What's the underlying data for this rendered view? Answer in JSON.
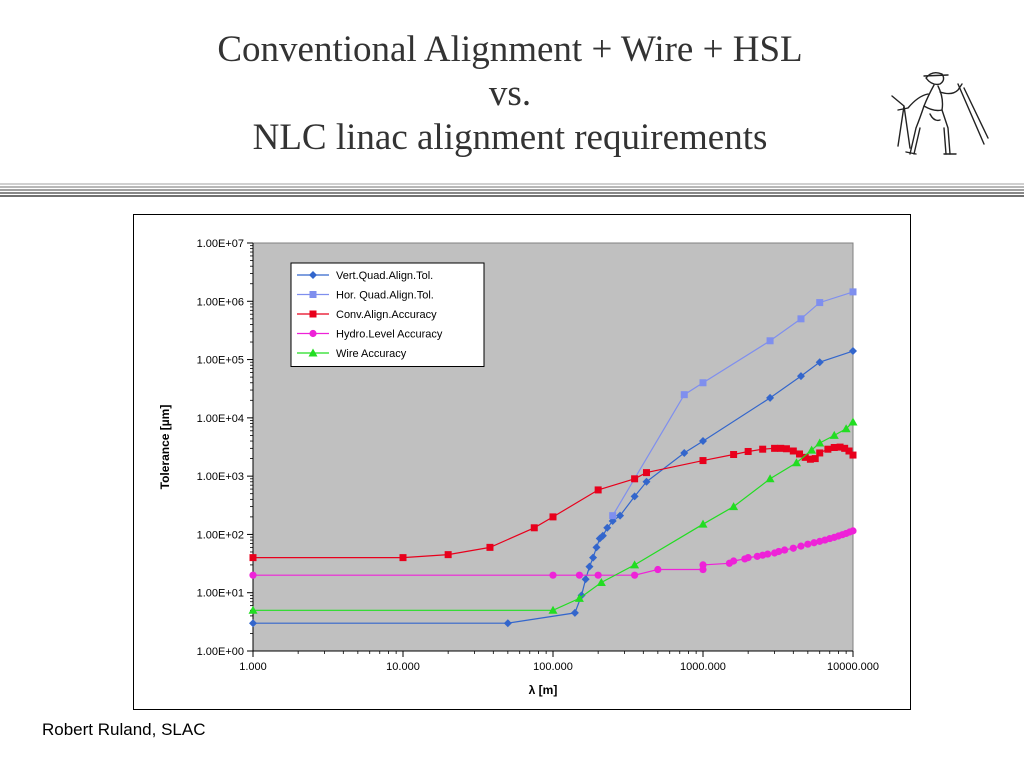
{
  "slide": {
    "title_lines": [
      "Conventional Alignment + Wire + HSL",
      "vs.",
      "NLC linac alignment requirements"
    ],
    "footer": "Robert Ruland, SLAC"
  },
  "chart_data": {
    "type": "scatter",
    "title": "",
    "xlabel": "λ  [m]",
    "ylabel": "Tolerance [µm]",
    "x_scale": "log",
    "y_scale": "log",
    "xlim": [
      1,
      10000
    ],
    "ylim": [
      1,
      10000000
    ],
    "x_ticks": [
      {
        "v": 1,
        "label": "1.000"
      },
      {
        "v": 10,
        "label": "10.000"
      },
      {
        "v": 100,
        "label": "100.000"
      },
      {
        "v": 1000,
        "label": "1000.000"
      },
      {
        "v": 10000,
        "label": "10000.000"
      }
    ],
    "y_ticks": [
      {
        "v": 1,
        "label": "1.00E+00"
      },
      {
        "v": 10,
        "label": "1.00E+01"
      },
      {
        "v": 100,
        "label": "1.00E+02"
      },
      {
        "v": 1000,
        "label": "1.00E+03"
      },
      {
        "v": 10000,
        "label": "1.00E+04"
      },
      {
        "v": 100000,
        "label": "1.00E+05"
      },
      {
        "v": 1000000,
        "label": "1.00E+06"
      },
      {
        "v": 10000000,
        "label": "1.00E+07"
      }
    ],
    "grid": false,
    "legend_position": "top-left",
    "plot_background": "#c0c0c0",
    "series": [
      {
        "name": "Vert.Quad.Align.Tol.",
        "color": "#3366cc",
        "marker": "diamond",
        "points": [
          [
            1,
            3
          ],
          [
            50,
            3
          ],
          [
            140,
            4.5
          ],
          [
            155,
            9
          ],
          [
            165,
            17
          ],
          [
            175,
            28
          ],
          [
            185,
            40
          ],
          [
            195,
            60
          ],
          [
            205,
            85
          ],
          [
            215,
            95
          ],
          [
            230,
            130
          ],
          [
            250,
            170
          ],
          [
            280,
            210
          ],
          [
            350,
            450
          ],
          [
            420,
            800
          ],
          [
            750,
            2500
          ],
          [
            1000,
            4000
          ],
          [
            2800,
            22000
          ],
          [
            4500,
            52000
          ],
          [
            6000,
            90000
          ],
          [
            10000,
            140000
          ]
        ]
      },
      {
        "name": "Hor. Quad.Align.Tol.",
        "color": "#7f8fee",
        "marker": "square",
        "points": [
          [
            250,
            210
          ],
          [
            750,
            25000
          ],
          [
            1000,
            40000
          ],
          [
            2800,
            210000
          ],
          [
            4500,
            500000
          ],
          [
            6000,
            950000
          ],
          [
            10000,
            1450000
          ]
        ]
      },
      {
        "name": "Conv.Align.Accuracy",
        "color": "#e8001c",
        "marker": "square",
        "points": [
          [
            1,
            40
          ],
          [
            10,
            40
          ],
          [
            20,
            45
          ],
          [
            38,
            60
          ],
          [
            75,
            130
          ],
          [
            100,
            200
          ],
          [
            200,
            580
          ],
          [
            350,
            900
          ],
          [
            420,
            1150
          ],
          [
            1000,
            1850
          ],
          [
            1600,
            2350
          ],
          [
            2000,
            2650
          ],
          [
            2500,
            2900
          ],
          [
            3000,
            3000
          ],
          [
            3300,
            3000
          ],
          [
            3600,
            2950
          ],
          [
            4000,
            2700
          ],
          [
            4400,
            2400
          ],
          [
            4800,
            2100
          ],
          [
            5200,
            1950
          ],
          [
            5600,
            2000
          ],
          [
            6000,
            2500
          ],
          [
            6800,
            2900
          ],
          [
            7500,
            3100
          ],
          [
            8200,
            3150
          ],
          [
            8800,
            3000
          ],
          [
            9400,
            2700
          ],
          [
            10000,
            2300
          ]
        ]
      },
      {
        "name": "Hydro.Level Accuracy",
        "color": "#ee22d8",
        "marker": "circle",
        "points": [
          [
            1,
            20
          ],
          [
            100,
            20
          ],
          [
            150,
            20
          ],
          [
            200,
            20
          ],
          [
            350,
            20
          ],
          [
            500,
            25
          ],
          [
            1000,
            25
          ],
          [
            1000,
            30
          ],
          [
            1500,
            32
          ],
          [
            1600,
            35
          ],
          [
            1900,
            38
          ],
          [
            2000,
            40
          ],
          [
            2300,
            42
          ],
          [
            2500,
            44
          ],
          [
            2700,
            46
          ],
          [
            3000,
            48
          ],
          [
            3200,
            51
          ],
          [
            3500,
            54
          ],
          [
            4000,
            58
          ],
          [
            4500,
            63
          ],
          [
            5000,
            68
          ],
          [
            5500,
            72
          ],
          [
            6000,
            76
          ],
          [
            6500,
            80
          ],
          [
            7000,
            85
          ],
          [
            7500,
            89
          ],
          [
            8000,
            94
          ],
          [
            8500,
            99
          ],
          [
            9000,
            104
          ],
          [
            9500,
            110
          ],
          [
            10000,
            115
          ]
        ]
      },
      {
        "name": "Wire Accuracy",
        "color": "#22dd22",
        "marker": "triangle",
        "points": [
          [
            1,
            5
          ],
          [
            100,
            5
          ],
          [
            150,
            8
          ],
          [
            210,
            15
          ],
          [
            350,
            30
          ],
          [
            1000,
            150
          ],
          [
            1600,
            300
          ],
          [
            2800,
            900
          ],
          [
            4200,
            1700
          ],
          [
            5300,
            2800
          ],
          [
            6000,
            3700
          ],
          [
            7500,
            5000
          ],
          [
            9000,
            6500
          ],
          [
            10000,
            8500
          ]
        ]
      }
    ]
  }
}
